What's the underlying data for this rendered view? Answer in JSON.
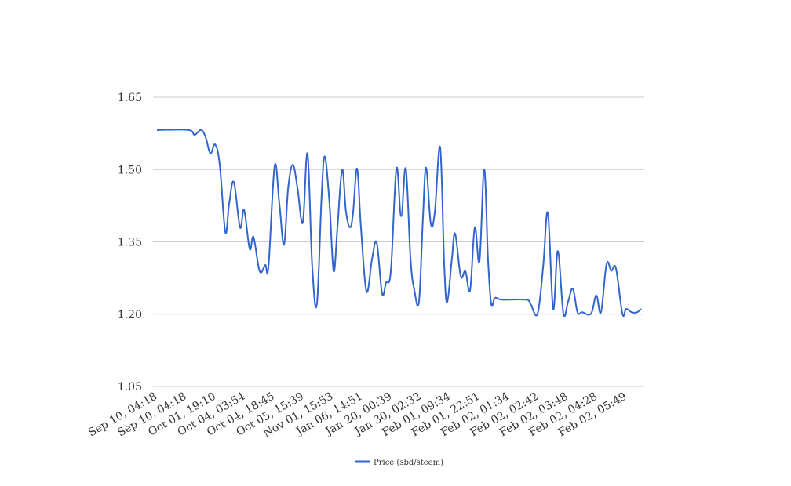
{
  "chart_data": {
    "type": "line",
    "title": "",
    "xlabel": "",
    "ylabel": "",
    "ylim": [
      1.05,
      1.65
    ],
    "yticks": [
      "1.05",
      "1.20",
      "1.35",
      "1.50",
      "1.65"
    ],
    "grid": true,
    "legend_position": "bottom",
    "categories": [
      "Sep 10, 04:18",
      "Sep 10, 04:18",
      "Oct 01, 19:10",
      "Oct 04, 03:54",
      "Oct 04, 18:45",
      "Oct 05, 15:39",
      "Nov 01, 15:53",
      "Jan 06, 14:51",
      "Jan 20, 00:39",
      "Jan 30, 02:32",
      "Feb 01, 09:34",
      "Feb 01, 22:51",
      "Feb 02, 01:34",
      "Feb 02, 02:42",
      "Feb 02, 03:48",
      "Feb 02, 04:28",
      "Feb 02, 05:49"
    ],
    "series": [
      {
        "name": "Price (sbd/steem)",
        "color": "#3366cc",
        "points": [
          [
            0,
            1.582
          ],
          [
            1.07,
            1.582
          ],
          [
            1.28,
            1.572
          ],
          [
            1.5,
            1.582
          ],
          [
            1.66,
            1.567
          ],
          [
            1.82,
            1.533
          ],
          [
            1.98,
            1.552
          ],
          [
            2.14,
            1.51
          ],
          [
            2.33,
            1.37
          ],
          [
            2.46,
            1.429
          ],
          [
            2.62,
            1.474
          ],
          [
            2.83,
            1.38
          ],
          [
            2.97,
            1.416
          ],
          [
            3.16,
            1.335
          ],
          [
            3.29,
            1.36
          ],
          [
            3.5,
            1.289
          ],
          [
            3.69,
            1.302
          ],
          [
            3.8,
            1.299
          ],
          [
            4.01,
            1.507
          ],
          [
            4.17,
            1.43
          ],
          [
            4.33,
            1.344
          ],
          [
            4.47,
            1.461
          ],
          [
            4.63,
            1.51
          ],
          [
            4.79,
            1.461
          ],
          [
            4.97,
            1.39
          ],
          [
            5.13,
            1.533
          ],
          [
            5.29,
            1.3
          ],
          [
            5.45,
            1.221
          ],
          [
            5.61,
            1.445
          ],
          [
            5.72,
            1.527
          ],
          [
            5.88,
            1.429
          ],
          [
            6.02,
            1.289
          ],
          [
            6.15,
            1.38
          ],
          [
            6.31,
            1.5
          ],
          [
            6.44,
            1.413
          ],
          [
            6.58,
            1.38
          ],
          [
            6.68,
            1.409
          ],
          [
            6.82,
            1.502
          ],
          [
            6.95,
            1.38
          ],
          [
            7.14,
            1.247
          ],
          [
            7.33,
            1.315
          ],
          [
            7.49,
            1.348
          ],
          [
            7.67,
            1.243
          ],
          [
            7.81,
            1.266
          ],
          [
            7.97,
            1.29
          ],
          [
            8.16,
            1.502
          ],
          [
            8.32,
            1.403
          ],
          [
            8.48,
            1.502
          ],
          [
            8.64,
            1.315
          ],
          [
            8.77,
            1.25
          ],
          [
            8.93,
            1.227
          ],
          [
            9.06,
            1.396
          ],
          [
            9.17,
            1.504
          ],
          [
            9.33,
            1.388
          ],
          [
            9.47,
            1.413
          ],
          [
            9.65,
            1.546
          ],
          [
            9.79,
            1.299
          ],
          [
            9.89,
            1.225
          ],
          [
            10.05,
            1.315
          ],
          [
            10.16,
            1.367
          ],
          [
            10.35,
            1.279
          ],
          [
            10.51,
            1.289
          ],
          [
            10.67,
            1.25
          ],
          [
            10.83,
            1.38
          ],
          [
            10.99,
            1.31
          ],
          [
            11.15,
            1.5
          ],
          [
            11.28,
            1.315
          ],
          [
            11.39,
            1.221
          ],
          [
            11.52,
            1.234
          ],
          [
            11.76,
            1.23
          ],
          [
            12.57,
            1.23
          ],
          [
            12.73,
            1.221
          ],
          [
            12.97,
            1.201
          ],
          [
            13.16,
            1.299
          ],
          [
            13.32,
            1.41
          ],
          [
            13.5,
            1.211
          ],
          [
            13.66,
            1.331
          ],
          [
            13.85,
            1.201
          ],
          [
            14.01,
            1.226
          ],
          [
            14.17,
            1.253
          ],
          [
            14.33,
            1.204
          ],
          [
            14.49,
            1.204
          ],
          [
            14.79,
            1.201
          ],
          [
            14.97,
            1.239
          ],
          [
            15.13,
            1.204
          ],
          [
            15.32,
            1.304
          ],
          [
            15.48,
            1.29
          ],
          [
            15.64,
            1.295
          ],
          [
            15.86,
            1.201
          ],
          [
            15.99,
            1.211
          ],
          [
            16.18,
            1.204
          ],
          [
            16.36,
            1.204
          ],
          [
            16.5,
            1.211
          ]
        ]
      }
    ]
  }
}
